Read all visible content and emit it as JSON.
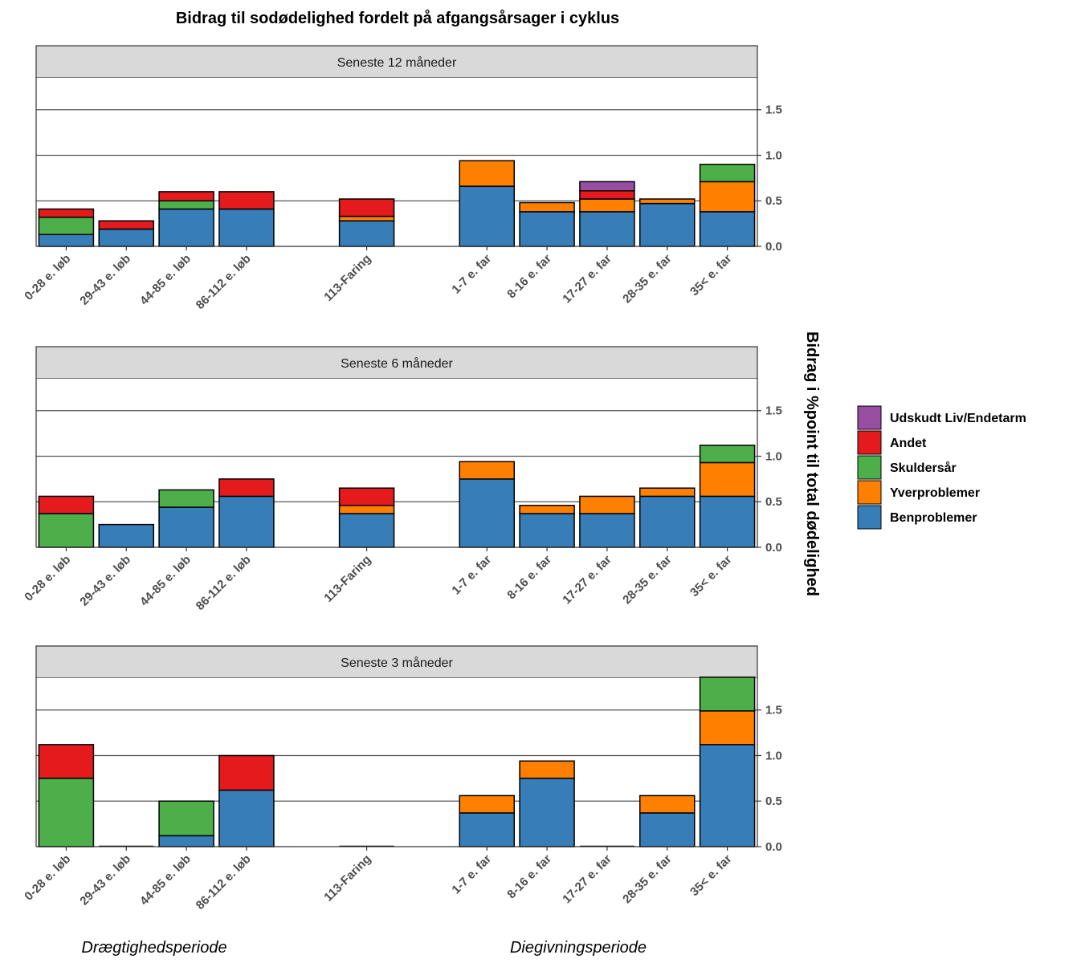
{
  "chart_data": {
    "type": "bar",
    "stacked": true,
    "title": "Bidrag til sodødelighed fordelt på afgangsårsager i cyklus",
    "ylabel": "Bidrag i %point til total dødelighed",
    "y_axis_position": "right",
    "ylim": [
      0,
      1.85
    ],
    "yticks": [
      "0.0",
      "0.5",
      "1.0",
      "1.5"
    ],
    "ytick_values": [
      0,
      0.5,
      1.0,
      1.5
    ],
    "grid": "horizontal",
    "legend_position": "right",
    "period_labels": [
      "Drægtighedsperiode",
      "Diegivningsperiode"
    ],
    "categories": [
      "0-28 e. løb",
      "29-43 e. løb",
      "44-85 e. løb",
      "86-112 e. løb",
      "113-Faring",
      "1-7 e. far",
      "8-16 e. far",
      "17-27 e. far",
      "28-35 e. far",
      "35< e. far"
    ],
    "legend_order": [
      "Udskudt Liv/Endetarm",
      "Andet",
      "Skuldersår",
      "Yverproblemer",
      "Benproblemer"
    ],
    "series_colors": {
      "Benproblemer": "#377EB8",
      "Yverproblemer": "#FF7F00",
      "Skuldersår": "#4DAF4A",
      "Andet": "#E41A1C",
      "Udskudt Liv/Endetarm": "#984EA3"
    },
    "panels": [
      {
        "label": "Seneste 12 måneder",
        "series": [
          {
            "name": "Benproblemer",
            "values": [
              0.13,
              0.19,
              0.41,
              0.41,
              0.28,
              0.66,
              0.38,
              0.38,
              0.47,
              0.38
            ]
          },
          {
            "name": "Yverproblemer",
            "values": [
              0,
              0,
              0,
              0,
              0.05,
              0.28,
              0.1,
              0.14,
              0.05,
              0.33
            ]
          },
          {
            "name": "Skuldersår",
            "values": [
              0.19,
              0,
              0.09,
              0,
              0,
              0,
              0,
              0,
              0,
              0.19
            ]
          },
          {
            "name": "Andet",
            "values": [
              0.09,
              0.09,
              0.1,
              0.19,
              0.19,
              0,
              0,
              0.09,
              0,
              0
            ]
          },
          {
            "name": "Udskudt Liv/Endetarm",
            "values": [
              0,
              0,
              0,
              0,
              0,
              0,
              0,
              0.1,
              0,
              0
            ]
          }
        ]
      },
      {
        "label": "Seneste 6 måneder",
        "series": [
          {
            "name": "Benproblemer",
            "values": [
              0,
              0.25,
              0.44,
              0.56,
              0.37,
              0.75,
              0.37,
              0.37,
              0.56,
              0.56
            ]
          },
          {
            "name": "Yverproblemer",
            "values": [
              0,
              0,
              0,
              0,
              0.09,
              0.19,
              0.09,
              0.19,
              0.09,
              0.37
            ]
          },
          {
            "name": "Skuldersår",
            "values": [
              0.37,
              0,
              0.19,
              0,
              0,
              0,
              0,
              0,
              0,
              0.19
            ]
          },
          {
            "name": "Andet",
            "values": [
              0.19,
              0,
              0,
              0.19,
              0.19,
              0,
              0,
              0,
              0,
              0
            ]
          },
          {
            "name": "Udskudt Liv/Endetarm",
            "values": [
              0,
              0,
              0,
              0,
              0,
              0,
              0,
              0,
              0,
              0
            ]
          }
        ]
      },
      {
        "label": "Seneste 3 måneder",
        "series": [
          {
            "name": "Benproblemer",
            "values": [
              0,
              0,
              0.12,
              0.62,
              0,
              0.37,
              0.75,
              0,
              0.37,
              1.12
            ]
          },
          {
            "name": "Yverproblemer",
            "values": [
              0,
              0,
              0,
              0,
              0,
              0.19,
              0.19,
              0,
              0.19,
              0.37
            ]
          },
          {
            "name": "Skuldersår",
            "values": [
              0.75,
              0,
              0.38,
              0,
              0,
              0,
              0,
              0,
              0,
              0.37
            ]
          },
          {
            "name": "Andet",
            "values": [
              0.37,
              0,
              0,
              0.38,
              0,
              0,
              0,
              0,
              0,
              0
            ]
          },
          {
            "name": "Udskudt Liv/Endetarm",
            "values": [
              0,
              0,
              0,
              0,
              0,
              0,
              0,
              0,
              0,
              0
            ]
          }
        ]
      }
    ]
  }
}
